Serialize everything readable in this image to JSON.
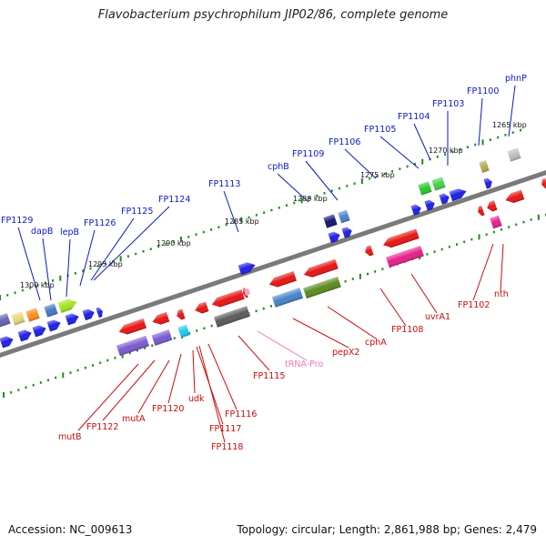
{
  "title": "Flavobacterium psychrophilum JIP02/86, complete genome",
  "footer": {
    "accession": "Accession: NC_009613",
    "summary": "Topology: circular; Length: 2,861,988 bp; Genes: 2,479"
  },
  "colors": {
    "top_label": "#0a19c8",
    "bottom_label": "#d20a0a",
    "trna_label": "#f07ab4",
    "backbone": "#7a7a7a",
    "tick": "#1e8c1e"
  },
  "scale": {
    "ticks": [
      "1300 kbp",
      "1295 kbp",
      "1290 kbp",
      "1285 kbp",
      "1280 kbp",
      "1275 kbp",
      "1270 kbp",
      "1265 kbp"
    ]
  },
  "top_labels": [
    "FP1129",
    "dapB",
    "lepB",
    "FP1126",
    "FP1125",
    "FP1124",
    "FP1113",
    "cphB",
    "FP1109",
    "FP1106",
    "FP1105",
    "FP1104",
    "FP1103",
    "FP1100",
    "phnP"
  ],
  "bottom_labels": [
    "mutB",
    "FP1122",
    "mutA",
    "FP1120",
    "udk",
    "FP1117",
    "FP1118",
    "FP1116",
    "FP1115",
    "tRNA-Pro",
    "pepX2",
    "cphA",
    "FP1108",
    "uvrA1",
    "FP1102",
    "nth"
  ]
}
